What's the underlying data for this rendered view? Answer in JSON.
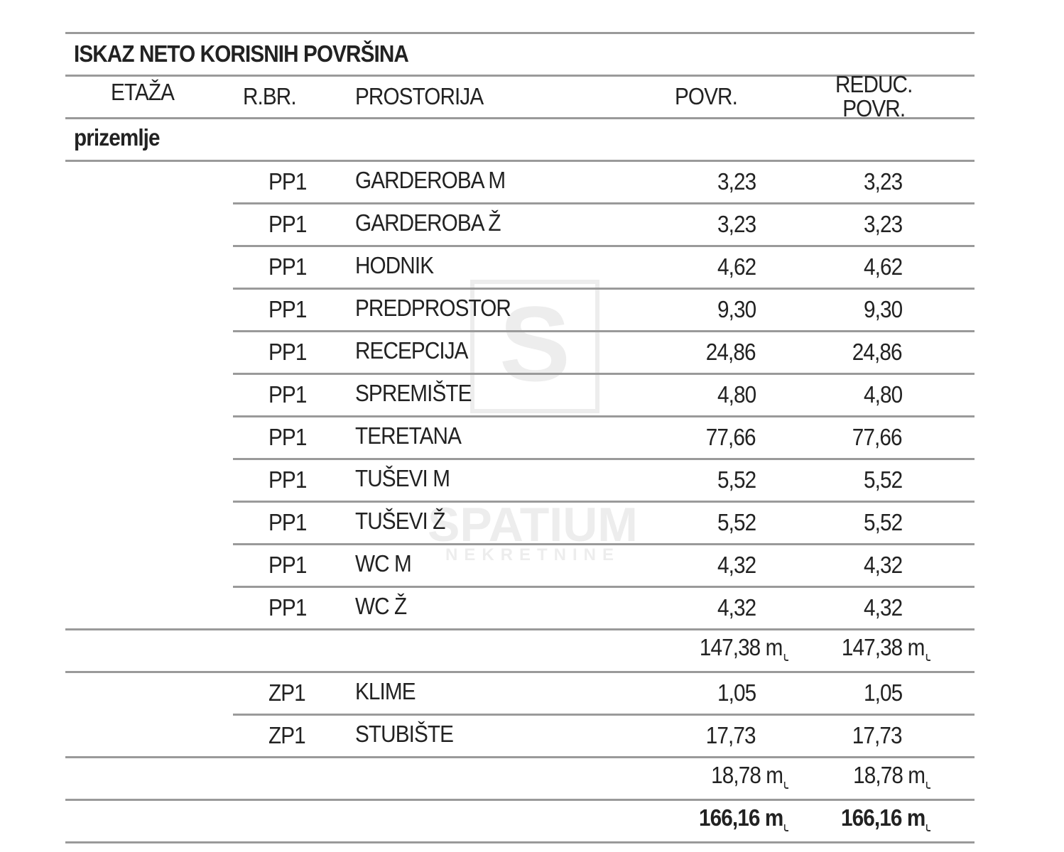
{
  "title": "ISKAZ NETO KORISNIH POVRŠINA",
  "headers": {
    "etaza": "ETAŽA",
    "rbr": "R.BR.",
    "prostorija": "PROSTORIJA",
    "povr": "POVR.",
    "reduc_1": "REDUC.",
    "reduc_2": "POVR."
  },
  "floor": "prizemlje",
  "group1": [
    {
      "rbr": "PP1",
      "room": "GARDEROBA M",
      "povr": "3,23",
      "reduc": "3,23"
    },
    {
      "rbr": "PP1",
      "room": "GARDEROBA Ž",
      "povr": "3,23",
      "reduc": "3,23"
    },
    {
      "rbr": "PP1",
      "room": "HODNIK",
      "povr": "4,62",
      "reduc": "4,62"
    },
    {
      "rbr": "PP1",
      "room": "PREDPROSTOR",
      "povr": "9,30",
      "reduc": "9,30"
    },
    {
      "rbr": "PP1",
      "room": "RECEPCIJA",
      "povr": "24,86",
      "reduc": "24,86"
    },
    {
      "rbr": "PP1",
      "room": "SPREMIŠTE",
      "povr": "4,80",
      "reduc": "4,80"
    },
    {
      "rbr": "PP1",
      "room": "TERETANA",
      "povr": "77,66",
      "reduc": "77,66"
    },
    {
      "rbr": "PP1",
      "room": "TUŠEVI M",
      "povr": "5,52",
      "reduc": "5,52"
    },
    {
      "rbr": "PP1",
      "room": "TUŠEVI Ž",
      "povr": "5,52",
      "reduc": "5,52"
    },
    {
      "rbr": "PP1",
      "room": "WC M",
      "povr": "4,32",
      "reduc": "4,32"
    },
    {
      "rbr": "PP1",
      "room": "WC Ž",
      "povr": "4,32",
      "reduc": "4,32"
    }
  ],
  "subtotal1": {
    "povr": "147,38 m",
    "reduc": "147,38 m"
  },
  "group2": [
    {
      "rbr": "ZP1",
      "room": "KLIME",
      "povr": "1,05",
      "reduc": "1,05"
    },
    {
      "rbr": "ZP1",
      "room": "STUBIŠTE",
      "povr": "17,73",
      "reduc": "17,73"
    }
  ],
  "subtotal2": {
    "povr": "18,78 m",
    "reduc": "18,78 m"
  },
  "total": {
    "povr": "166,16 m",
    "reduc": "166,16 m"
  },
  "watermark": {
    "letter": "S",
    "name": "SPATIUM",
    "sub": "NEKRETNINE"
  }
}
